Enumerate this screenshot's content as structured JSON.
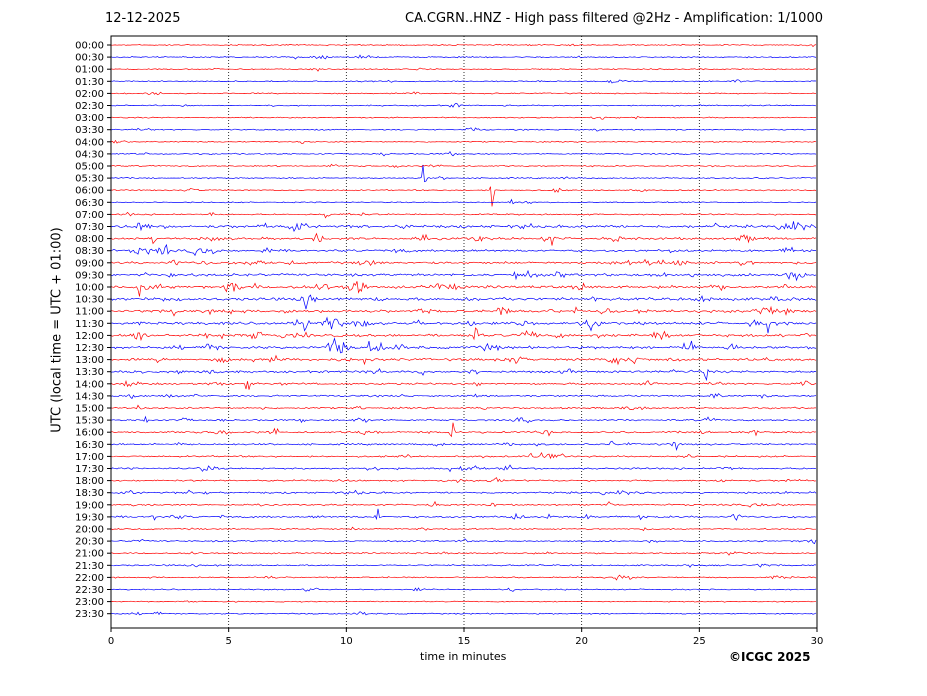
{
  "header": {
    "date": "12-12-2025",
    "title": "CA.CGRN..HNZ - High pass filtered @2Hz - Amplification: 1/1000",
    "credit": "©ICGC 2025"
  },
  "chart_data": {
    "type": "line",
    "title": "CA.CGRN..HNZ - High pass filtered @2Hz - Amplification: 1/1000",
    "xlabel": "time in minutes",
    "ylabel": "UTC (local time = UTC + 01:00)",
    "xlim": [
      0,
      30
    ],
    "xticks": [
      0,
      5,
      10,
      15,
      20,
      25,
      30
    ],
    "grid_x": [
      5,
      10,
      15,
      20,
      25
    ],
    "colors": {
      "even_hour_row": "#ff0000",
      "half_hour_row": "#0000ff"
    },
    "rows": [
      "00:00",
      "00:30",
      "01:00",
      "01:30",
      "02:00",
      "02:30",
      "03:00",
      "03:30",
      "04:00",
      "04:30",
      "05:00",
      "05:30",
      "06:00",
      "06:30",
      "07:00",
      "07:30",
      "08:00",
      "08:30",
      "09:00",
      "09:30",
      "10:00",
      "10:30",
      "11:00",
      "11:30",
      "12:00",
      "12:30",
      "13:00",
      "13:30",
      "14:00",
      "14:30",
      "15:00",
      "15:30",
      "16:00",
      "16:30",
      "17:00",
      "17:30",
      "18:00",
      "18:30",
      "19:00",
      "19:30",
      "20:00",
      "20:30",
      "21:00",
      "21:30",
      "22:00",
      "22:30",
      "23:00",
      "23:30"
    ],
    "row_activity": [
      0.15,
      0.2,
      0.15,
      0.2,
      0.15,
      0.2,
      0.15,
      0.2,
      0.15,
      0.2,
      0.2,
      0.2,
      0.2,
      0.1,
      0.3,
      1.0,
      0.8,
      0.8,
      0.8,
      0.9,
      1.0,
      1.0,
      1.0,
      1.0,
      1.0,
      1.0,
      0.9,
      0.7,
      0.6,
      0.5,
      0.4,
      0.4,
      0.6,
      0.5,
      0.4,
      0.5,
      0.4,
      0.5,
      0.4,
      0.6,
      0.3,
      0.3,
      0.3,
      0.3,
      0.3,
      0.2,
      0.1,
      0.2
    ],
    "events": [
      {
        "row": "00:30",
        "minute": 19.9,
        "amp": 0.3
      },
      {
        "row": "01:00",
        "minute": 4.5,
        "amp": 0.3
      },
      {
        "row": "05:00",
        "minute": 7.1,
        "amp": 0.3
      },
      {
        "row": "05:30",
        "minute": 13.3,
        "amp": 2.2
      },
      {
        "row": "06:00",
        "minute": 16.2,
        "amp": 3.0
      },
      {
        "row": "06:30",
        "minute": 17.0,
        "amp": 0.6
      },
      {
        "row": "07:00",
        "minute": 9.2,
        "amp": 1.4
      },
      {
        "row": "07:30",
        "minute": 1.2,
        "amp": 1.5
      },
      {
        "row": "08:00",
        "minute": 8.7,
        "amp": 2.0
      },
      {
        "row": "09:30",
        "minute": 17.2,
        "amp": 1.2
      },
      {
        "row": "10:00",
        "minute": 1.2,
        "amp": 1.2
      },
      {
        "row": "11:00",
        "minute": 19.8,
        "amp": 1.5
      },
      {
        "row": "11:30",
        "minute": 27.9,
        "amp": 1.2
      },
      {
        "row": "12:00",
        "minute": 15.5,
        "amp": 1.6
      },
      {
        "row": "12:30",
        "minute": 11.0,
        "amp": 1.0
      },
      {
        "row": "13:30",
        "minute": 25.3,
        "amp": 1.2
      },
      {
        "row": "14:00",
        "minute": 5.8,
        "amp": 1.8
      },
      {
        "row": "14:30",
        "minute": 25.6,
        "amp": 1.4
      },
      {
        "row": "15:30",
        "minute": 1.5,
        "amp": 1.6
      },
      {
        "row": "16:00",
        "minute": 7.0,
        "amp": 0.8
      },
      {
        "row": "16:00",
        "minute": 14.5,
        "amp": 1.4
      },
      {
        "row": "16:30",
        "minute": 24.0,
        "amp": 0.7
      },
      {
        "row": "17:00",
        "minute": 17.8,
        "amp": 0.7
      },
      {
        "row": "17:30",
        "minute": 14.4,
        "amp": 0.7
      },
      {
        "row": "18:30",
        "minute": 4.0,
        "amp": 0.7
      },
      {
        "row": "19:00",
        "minute": 21.2,
        "amp": 0.7
      },
      {
        "row": "19:30",
        "minute": 11.3,
        "amp": 1.8
      },
      {
        "row": "19:30",
        "minute": 1.8,
        "amp": 0.8
      }
    ]
  }
}
